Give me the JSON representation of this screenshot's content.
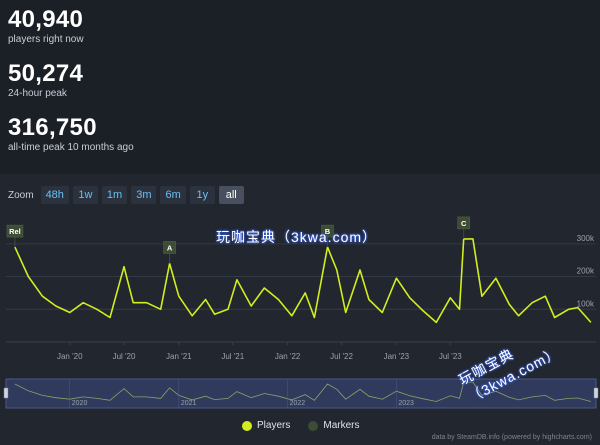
{
  "stats": [
    {
      "value": "40,940",
      "label": "players right now"
    },
    {
      "value": "50,274",
      "label": "24-hour peak"
    },
    {
      "value": "316,750",
      "label": "all-time peak 10 months ago"
    }
  ],
  "zoom": {
    "label": "Zoom",
    "buttons": [
      "48h",
      "1w",
      "1m",
      "3m",
      "6m",
      "1y",
      "all"
    ],
    "active": "all"
  },
  "chart_data": {
    "type": "line",
    "series": [
      {
        "name": "Players",
        "color": "#d2ee1f",
        "points": [
          [
            "2019-07-01",
            290000
          ],
          [
            "2019-08-15",
            200000
          ],
          [
            "2019-10-01",
            140000
          ],
          [
            "2019-11-15",
            110000
          ],
          [
            "2020-01-01",
            90000
          ],
          [
            "2020-02-15",
            120000
          ],
          [
            "2020-04-01",
            100000
          ],
          [
            "2020-05-15",
            75000
          ],
          [
            "2020-07-01",
            230000
          ],
          [
            "2020-08-01",
            120000
          ],
          [
            "2020-09-15",
            120000
          ],
          [
            "2020-11-01",
            100000
          ],
          [
            "2020-12-01",
            240000
          ],
          [
            "2021-01-01",
            140000
          ],
          [
            "2021-02-15",
            80000
          ],
          [
            "2021-04-01",
            130000
          ],
          [
            "2021-05-01",
            85000
          ],
          [
            "2021-06-15",
            100000
          ],
          [
            "2021-07-15",
            190000
          ],
          [
            "2021-09-01",
            110000
          ],
          [
            "2021-10-15",
            165000
          ],
          [
            "2021-12-01",
            130000
          ],
          [
            "2022-01-15",
            80000
          ],
          [
            "2022-03-01",
            150000
          ],
          [
            "2022-04-01",
            75000
          ],
          [
            "2022-05-15",
            290000
          ],
          [
            "2022-06-15",
            220000
          ],
          [
            "2022-07-15",
            90000
          ],
          [
            "2022-09-01",
            220000
          ],
          [
            "2022-10-01",
            130000
          ],
          [
            "2022-11-15",
            90000
          ],
          [
            "2023-01-01",
            195000
          ],
          [
            "2023-02-15",
            135000
          ],
          [
            "2023-04-01",
            95000
          ],
          [
            "2023-05-15",
            60000
          ],
          [
            "2023-07-01",
            135000
          ],
          [
            "2023-08-01",
            100000
          ],
          [
            "2023-08-15",
            315000
          ],
          [
            "2023-09-15",
            315000
          ],
          [
            "2023-10-15",
            140000
          ],
          [
            "2023-12-01",
            195000
          ],
          [
            "2024-01-15",
            115000
          ],
          [
            "2024-02-15",
            80000
          ],
          [
            "2024-04-01",
            120000
          ],
          [
            "2024-05-15",
            140000
          ],
          [
            "2024-06-15",
            75000
          ],
          [
            "2024-08-01",
            100000
          ],
          [
            "2024-09-01",
            105000
          ],
          [
            "2024-10-15",
            60000
          ]
        ]
      }
    ],
    "markers": [
      {
        "label": "Rel",
        "x": "2019-07-01"
      },
      {
        "label": "A",
        "x": "2020-12-01"
      },
      {
        "label": "B",
        "x": "2022-05-15"
      },
      {
        "label": "C",
        "x": "2023-08-15"
      }
    ],
    "x_ticks": [
      "Jan '20",
      "Jul '20",
      "Jan '21",
      "Jul '21",
      "Jan '22",
      "Jul '22",
      "Jan '23",
      "Jul '23"
    ],
    "x_tick_dates": [
      "2020-01-01",
      "2020-07-01",
      "2021-01-01",
      "2021-07-01",
      "2022-01-01",
      "2022-07-01",
      "2023-01-01",
      "2023-07-01"
    ],
    "y_ticks": [
      "100k",
      "200k",
      "300k"
    ],
    "y_tick_values": [
      100000,
      200000,
      300000
    ],
    "navigator_ticks": [
      "2020",
      "2021",
      "2022",
      "2023"
    ],
    "navigator_tick_dates": [
      "2020-01-01",
      "2021-01-01",
      "2022-01-01",
      "2023-01-01"
    ],
    "xlim": [
      "2019-06-01",
      "2024-11-01"
    ],
    "ylim": [
      0,
      330000
    ],
    "grid": true,
    "legend_position": "bottom-center"
  },
  "legend": [
    {
      "label": "Players",
      "color": "#d2ee1f"
    },
    {
      "label": "Markers",
      "color": "#3c4d33"
    }
  ],
  "credit": "data by SteamDB.info (powered by highcharts.com)",
  "watermark": "玩咖宝典（3kwa.com）"
}
